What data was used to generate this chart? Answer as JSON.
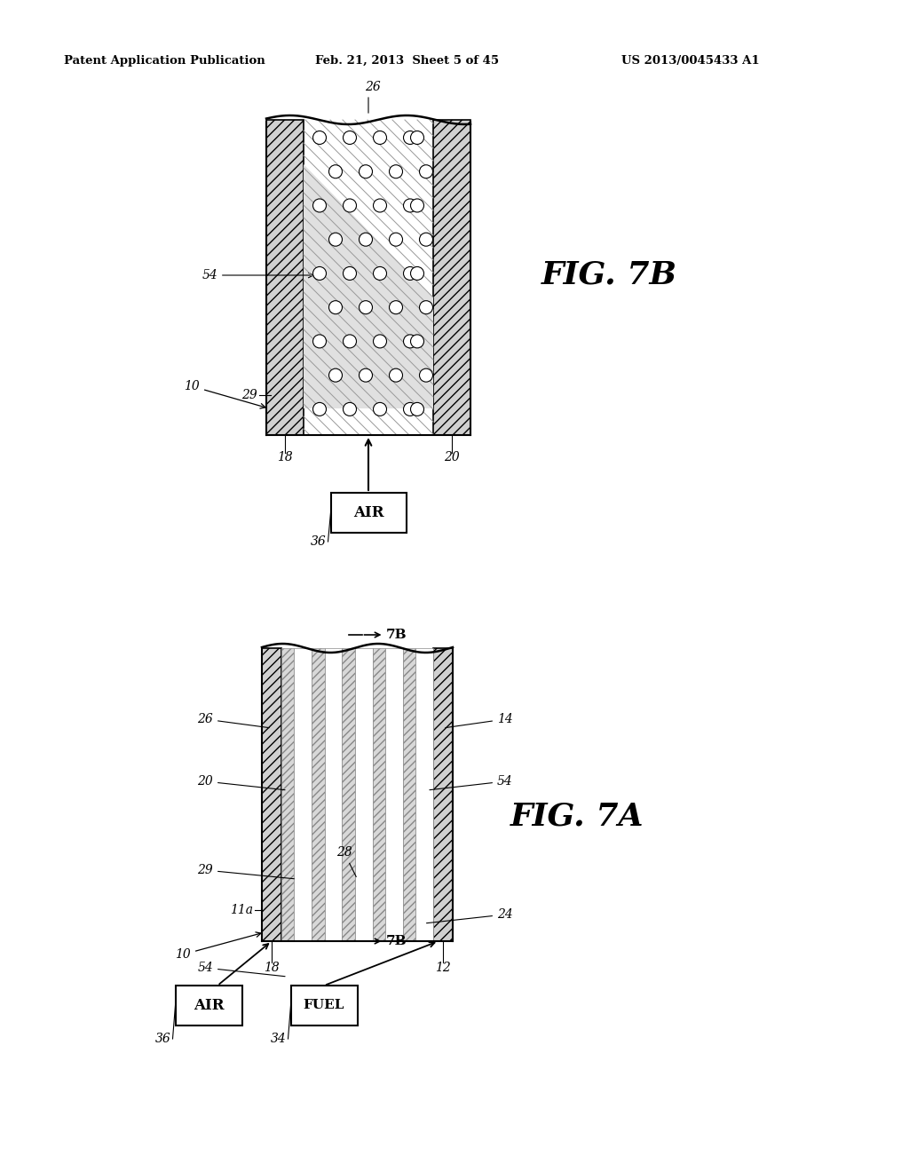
{
  "bg_color": "#ffffff",
  "header_text": "Patent Application Publication",
  "header_date": "Feb. 21, 2013  Sheet 5 of 45",
  "header_patent": "US 2013/0045433 A1",
  "fig7b_label": "FIG. 7B",
  "fig7a_label": "FIG. 7A"
}
